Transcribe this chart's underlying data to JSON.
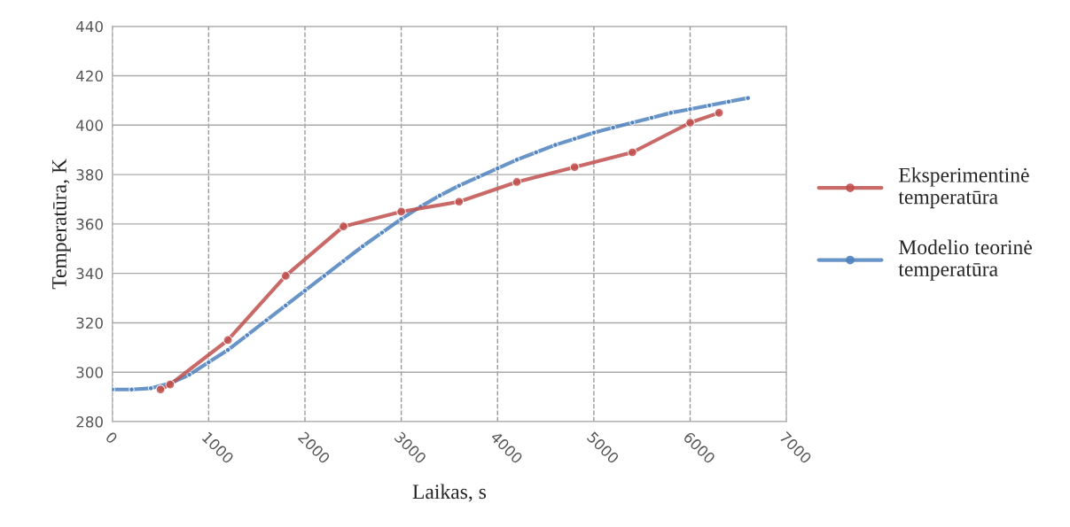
{
  "chart_data": {
    "type": "line",
    "xlabel": "Laikas, s",
    "ylabel": "Temperatūra, K",
    "xlim": [
      0,
      7000
    ],
    "xticks": [
      0,
      1000,
      2000,
      3000,
      4000,
      5000,
      6000,
      7000
    ],
    "ylim": [
      280,
      440
    ],
    "yticks": [
      280,
      300,
      320,
      340,
      360,
      380,
      400,
      420,
      440
    ],
    "grid": true,
    "legend": "right",
    "marker": "circle",
    "series": [
      {
        "name": "Eksperimentinė temperatūra",
        "color": "#c0504d",
        "x": [
          500,
          600,
          1200,
          1800,
          2400,
          3000,
          3600,
          4200,
          4800,
          5400,
          6000,
          6300
        ],
        "values": [
          293,
          295,
          313,
          339,
          359,
          365,
          369,
          377,
          383,
          389,
          401,
          405
        ]
      },
      {
        "name": "Modelio teorinė temperatūra",
        "color": "#4f81bd",
        "x": [
          0,
          200,
          400,
          600,
          800,
          1000,
          1200,
          1400,
          1600,
          1800,
          2000,
          2200,
          2400,
          2600,
          2800,
          3000,
          3200,
          3400,
          3600,
          3800,
          4000,
          4200,
          4400,
          4600,
          4800,
          5000,
          5200,
          5400,
          5600,
          5800,
          6000,
          6200,
          6400,
          6600
        ],
        "values": [
          293,
          293,
          293.5,
          295.5,
          299,
          304,
          309,
          315,
          321,
          327,
          333,
          339,
          345,
          351,
          356.5,
          362,
          367,
          371.5,
          375.5,
          379,
          382.5,
          386,
          389,
          392,
          394.5,
          397,
          399,
          401,
          403,
          405,
          406.5,
          408,
          409.5,
          411
        ]
      }
    ]
  }
}
